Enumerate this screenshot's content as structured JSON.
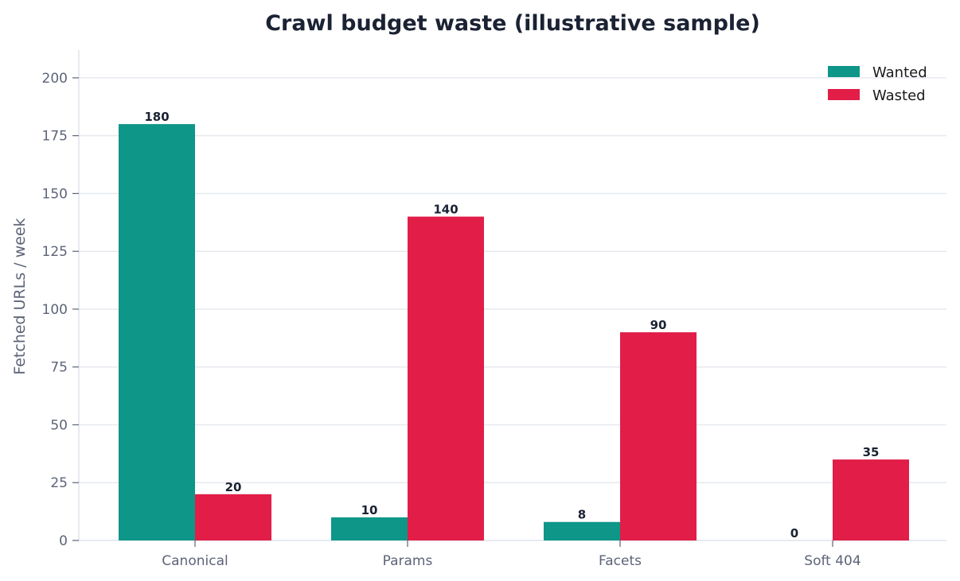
{
  "chart_data": {
    "type": "bar",
    "title": "Crawl budget waste (illustrative sample)",
    "xlabel": "",
    "ylabel": "Fetched URLs / week",
    "categories": [
      "Canonical",
      "Params",
      "Facets",
      "Soft 404"
    ],
    "series": [
      {
        "name": "Wanted",
        "values": [
          180,
          10,
          8,
          0
        ],
        "color": "#0e9688"
      },
      {
        "name": "Wasted",
        "values": [
          20,
          140,
          90,
          35
        ],
        "color": "#e11d48"
      }
    ],
    "ylim": [
      0,
      212
    ],
    "yticks": [
      0,
      25,
      50,
      75,
      100,
      125,
      150,
      175,
      200
    ],
    "grid": true,
    "legend_position": "top-right",
    "data_labels": true
  }
}
